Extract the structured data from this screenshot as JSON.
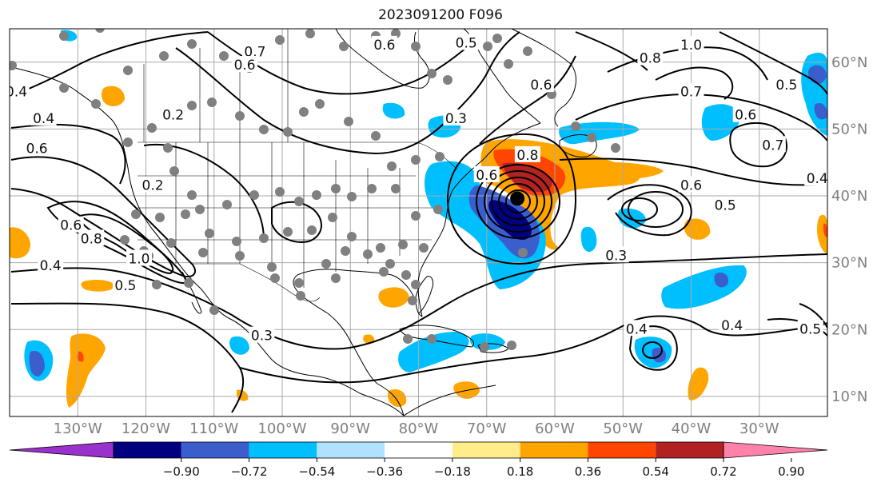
{
  "title": "2023091200 F096",
  "map": {
    "lon_range": [
      -140,
      -20
    ],
    "lat_range": [
      7,
      65
    ],
    "lon_ticks": [
      {
        "value": -130,
        "label": "130°W"
      },
      {
        "value": -120,
        "label": "120°W"
      },
      {
        "value": -110,
        "label": "110°W"
      },
      {
        "value": -100,
        "label": "100°W"
      },
      {
        "value": -90,
        "label": "90°W"
      },
      {
        "value": -80,
        "label": "80°W"
      },
      {
        "value": -70,
        "label": "70°W"
      },
      {
        "value": -60,
        "label": "60°W"
      },
      {
        "value": -50,
        "label": "50°W"
      },
      {
        "value": -40,
        "label": "40°W"
      },
      {
        "value": -30,
        "label": "30°W"
      }
    ],
    "lat_ticks": [
      {
        "value": 60,
        "label": "60°N"
      },
      {
        "value": 50,
        "label": "50°N"
      },
      {
        "value": 40,
        "label": "40°N"
      },
      {
        "value": 30,
        "label": "30°N"
      },
      {
        "value": 20,
        "label": "20°N"
      },
      {
        "value": 10,
        "label": "10°N"
      }
    ],
    "grid": true,
    "storm_center": {
      "lon": -65.5,
      "lat": 39.6
    },
    "contour_labels": [
      {
        "text": "0.6",
        "lon": -85,
        "lat": 62.5
      },
      {
        "text": "0.5",
        "lon": -73,
        "lat": 62.8
      },
      {
        "text": "0.7",
        "lon": -104,
        "lat": 61.5
      },
      {
        "text": "0.6",
        "lon": -105.5,
        "lat": 59.5
      },
      {
        "text": "0.2",
        "lon": -116,
        "lat": 52.0
      },
      {
        "text": "0.2",
        "lon": -119,
        "lat": 41.5
      },
      {
        "text": "0.3",
        "lon": -74.5,
        "lat": 51.5
      },
      {
        "text": "0.6",
        "lon": -62,
        "lat": 56.5
      },
      {
        "text": "0.8",
        "lon": -46,
        "lat": 60.5
      },
      {
        "text": "1.0",
        "lon": -40,
        "lat": 62.5
      },
      {
        "text": "0.7",
        "lon": -40,
        "lat": 55.5
      },
      {
        "text": "0.6",
        "lon": -32,
        "lat": 52.0
      },
      {
        "text": "0.5",
        "lon": -26,
        "lat": 56.5
      },
      {
        "text": "0.7",
        "lon": -28,
        "lat": 47.5
      },
      {
        "text": "0.4",
        "lon": -21.5,
        "lat": 42.5
      },
      {
        "text": "0.6",
        "lon": -40,
        "lat": 41.5
      },
      {
        "text": "0.5",
        "lon": -35,
        "lat": 38.5
      },
      {
        "text": "0.4",
        "lon": -135,
        "lat": 51.5
      },
      {
        "text": "0.6",
        "lon": -136,
        "lat": 47.0
      },
      {
        "text": "0.4",
        "lon": -139,
        "lat": 55.5
      },
      {
        "text": "0.6",
        "lon": -131,
        "lat": 35.5
      },
      {
        "text": "0.8",
        "lon": -128,
        "lat": 33.5
      },
      {
        "text": "1.0",
        "lon": -121,
        "lat": 30.5
      },
      {
        "text": "0.4",
        "lon": -134,
        "lat": 29.5
      },
      {
        "text": "0.5",
        "lon": -123,
        "lat": 26.5
      },
      {
        "text": "0.3",
        "lon": -103,
        "lat": 19.0
      },
      {
        "text": "0.3",
        "lon": -51,
        "lat": 31.0
      },
      {
        "text": "0.4",
        "lon": -48,
        "lat": 20.0
      },
      {
        "text": "0.4",
        "lon": -34,
        "lat": 20.5
      },
      {
        "text": "0.5",
        "lon": -22.5,
        "lat": 20.0
      },
      {
        "text": "0.8",
        "lon": -64,
        "lat": 46.0
      },
      {
        "text": "0.6",
        "lon": -70,
        "lat": 43.0
      }
    ]
  },
  "colorbar": {
    "colors": [
      "#9932cc",
      "#000080",
      "#3a5fcd",
      "#00bfff",
      "#b0e2ff",
      "#ffffff",
      "#ffec8b",
      "#ffa500",
      "#ff4500",
      "#b22222",
      "#ff82ab"
    ],
    "ticks": [
      "−0.90",
      "−0.72",
      "−0.54",
      "−0.36",
      "−0.18",
      "0.18",
      "0.36",
      "0.54",
      "0.72",
      "0.90"
    ]
  }
}
